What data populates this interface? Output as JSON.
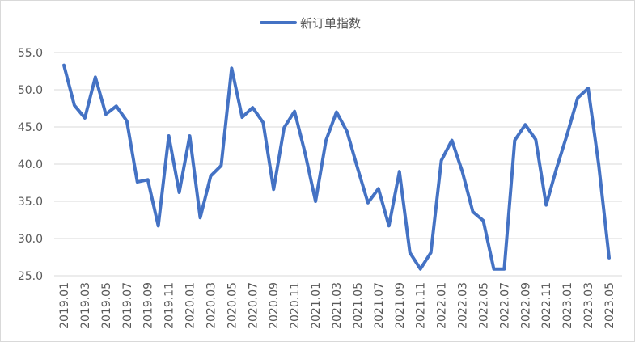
{
  "chart_data": {
    "type": "line",
    "title": "",
    "xlabel": "",
    "ylabel": "",
    "ylim": [
      25.0,
      55.0
    ],
    "yticks": [
      "25.0",
      "30.0",
      "35.0",
      "40.0",
      "45.0",
      "50.0",
      "55.0"
    ],
    "grid": "horizontal",
    "legend_position": "top-center",
    "x": [
      "2019.01",
      "2019.02",
      "2019.03",
      "2019.04",
      "2019.05",
      "2019.06",
      "2019.07",
      "2019.08",
      "2019.09",
      "2019.10",
      "2019.11",
      "2019.12",
      "2020.01",
      "2020.02",
      "2020.03",
      "2020.04",
      "2020.05",
      "2020.06",
      "2020.07",
      "2020.08",
      "2020.09",
      "2020.10",
      "2020.11",
      "2020.12",
      "2021.01",
      "2021.02",
      "2021.03",
      "2021.04",
      "2021.05",
      "2021.06",
      "2021.07",
      "2021.08",
      "2021.09",
      "2021.10",
      "2021.11",
      "2021.12",
      "2022.01",
      "2022.02",
      "2022.03",
      "2022.04",
      "2022.05",
      "2022.06",
      "2022.07",
      "2022.08",
      "2022.09",
      "2022.10",
      "2022.11",
      "2022.12",
      "2023.01",
      "2023.02",
      "2023.03",
      "2023.04",
      "2023.05"
    ],
    "x_tick_labels": [
      "2019.01",
      "2019.03",
      "2019.05",
      "2019.07",
      "2019.09",
      "2019.11",
      "2020.01",
      "2020.03",
      "2020.05",
      "2020.07",
      "2020.09",
      "2020.11",
      "2021.01",
      "2021.03",
      "2021.05",
      "2021.07",
      "2021.09",
      "2021.11",
      "2022.01",
      "2022.03",
      "2022.05",
      "2022.07",
      "2022.09",
      "2022.11",
      "2023.01",
      "2023.03",
      "2023.05"
    ],
    "series": [
      {
        "name": "新订单指数",
        "color": "#4472c4",
        "values": [
          53.3,
          47.9,
          46.2,
          51.7,
          46.7,
          47.8,
          45.8,
          37.6,
          37.9,
          31.7,
          43.8,
          36.2,
          43.8,
          32.8,
          38.4,
          39.8,
          52.9,
          46.3,
          47.6,
          45.6,
          36.6,
          44.9,
          47.1,
          41.5,
          35.0,
          43.2,
          47.0,
          44.4,
          39.5,
          34.8,
          36.7,
          31.7,
          39.0,
          28.1,
          25.9,
          28.1,
          40.5,
          43.2,
          39.0,
          33.6,
          32.4,
          25.9,
          25.9,
          43.2,
          45.3,
          43.3,
          34.5,
          39.5,
          44.0,
          48.9,
          50.2,
          40.0,
          27.4
        ]
      }
    ]
  }
}
